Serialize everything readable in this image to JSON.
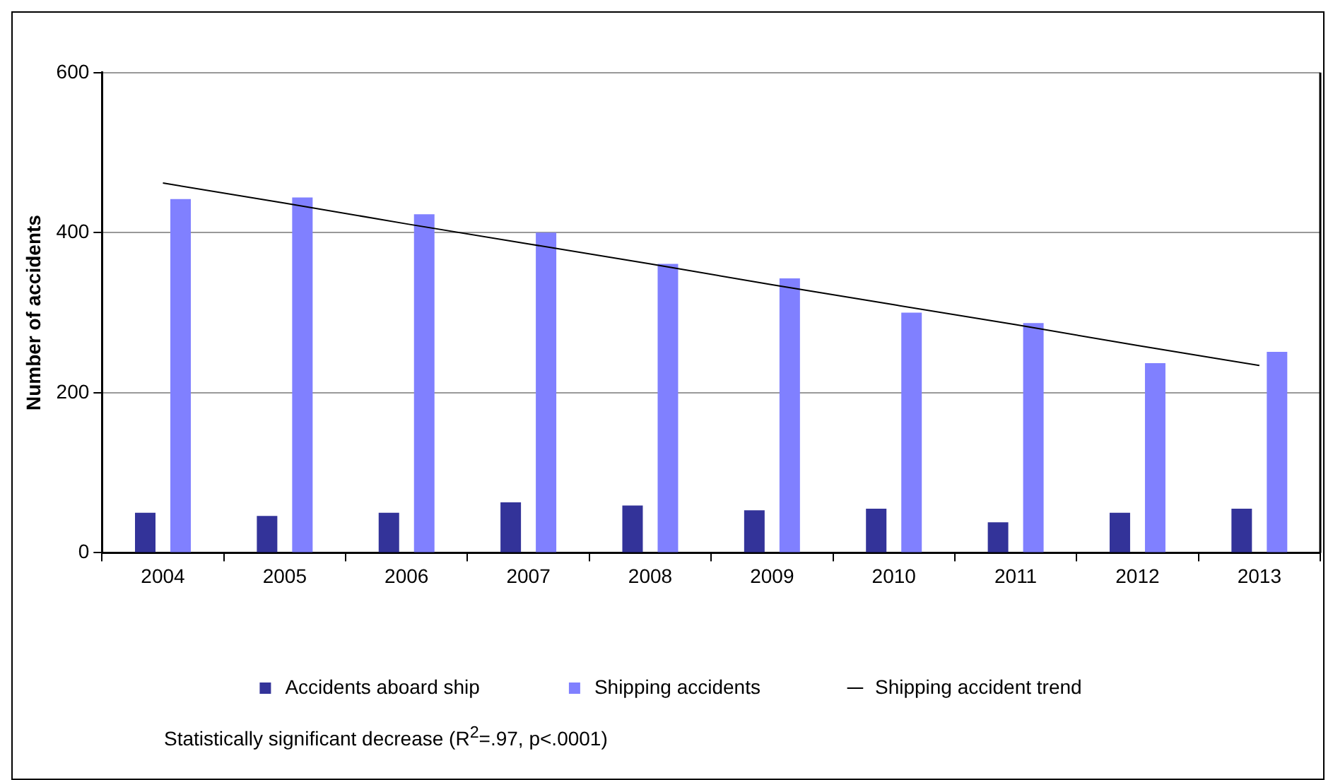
{
  "chart_data": {
    "type": "bar",
    "ylabel": "Number of accidents",
    "categories": [
      "2004",
      "2005",
      "2006",
      "2007",
      "2008",
      "2009",
      "2010",
      "2011",
      "2012",
      "2013"
    ],
    "series": [
      {
        "name": "Accidents aboard ship",
        "color": "#333399",
        "values": [
          50,
          46,
          50,
          63,
          59,
          53,
          55,
          38,
          50,
          55
        ]
      },
      {
        "name": "Shipping accidents",
        "color": "#8080ff",
        "values": [
          442,
          444,
          423,
          400,
          361,
          343,
          300,
          287,
          237,
          251
        ]
      },
      {
        "name": "Shipping accident trend",
        "type": "line",
        "color": "#000000",
        "values": [
          462,
          437,
          411,
          386,
          361,
          335,
          310,
          285,
          259,
          234
        ]
      }
    ],
    "ylim": [
      0,
      600
    ],
    "yticks": [
      0,
      200,
      400,
      600
    ],
    "grid": "y",
    "legend": "bottom",
    "marker": "none",
    "line_style": "solid",
    "annotations": [
      "Statistically significant decrease (R$^{2}$=.97, p<.0001)"
    ]
  }
}
